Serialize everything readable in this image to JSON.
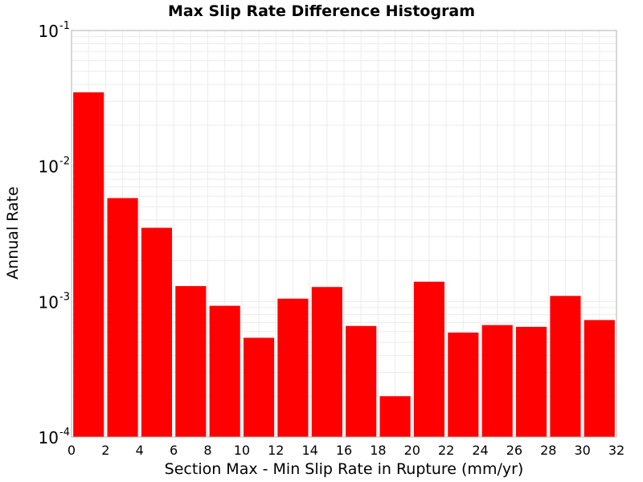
{
  "chart_data": {
    "type": "bar",
    "title": "Max Slip Rate Difference Histogram",
    "xlabel": "Section Max - Min Slip Rate in Rupture (mm/yr)",
    "ylabel": "Annual Rate",
    "y_scale": "log",
    "xlim": [
      0,
      32
    ],
    "ylim": [
      0.0001,
      0.1
    ],
    "grid": true,
    "x_ticks": [
      "0",
      "2",
      "4",
      "6",
      "8",
      "10",
      "12",
      "14",
      "16",
      "18",
      "20",
      "22",
      "24",
      "26",
      "28",
      "30",
      "32"
    ],
    "y_ticks": [
      {
        "base": "10",
        "exp": "-1",
        "value": 0.1
      },
      {
        "base": "10",
        "exp": "-2",
        "value": 0.01
      },
      {
        "base": "10",
        "exp": "-3",
        "value": 0.001
      },
      {
        "base": "10",
        "exp": "-4",
        "value": 0.0001
      }
    ],
    "bar_color": "#ff0000",
    "bars": [
      {
        "x": 1,
        "value": 0.035
      },
      {
        "x": 3,
        "value": 0.0058
      },
      {
        "x": 5,
        "value": 0.0035
      },
      {
        "x": 7,
        "value": 0.0013
      },
      {
        "x": 9,
        "value": 0.00093
      },
      {
        "x": 11,
        "value": 0.00054
      },
      {
        "x": 13,
        "value": 0.00105
      },
      {
        "x": 15,
        "value": 0.00128
      },
      {
        "x": 17,
        "value": 0.00066
      },
      {
        "x": 19,
        "value": 0.0002
      },
      {
        "x": 21,
        "value": 0.0014
      },
      {
        "x": 23,
        "value": 0.00059
      },
      {
        "x": 25,
        "value": 0.00067
      },
      {
        "x": 27,
        "value": 0.00065
      },
      {
        "x": 29,
        "value": 0.0011
      },
      {
        "x": 31,
        "value": 0.00073
      }
    ],
    "bar_width": 1.8
  }
}
